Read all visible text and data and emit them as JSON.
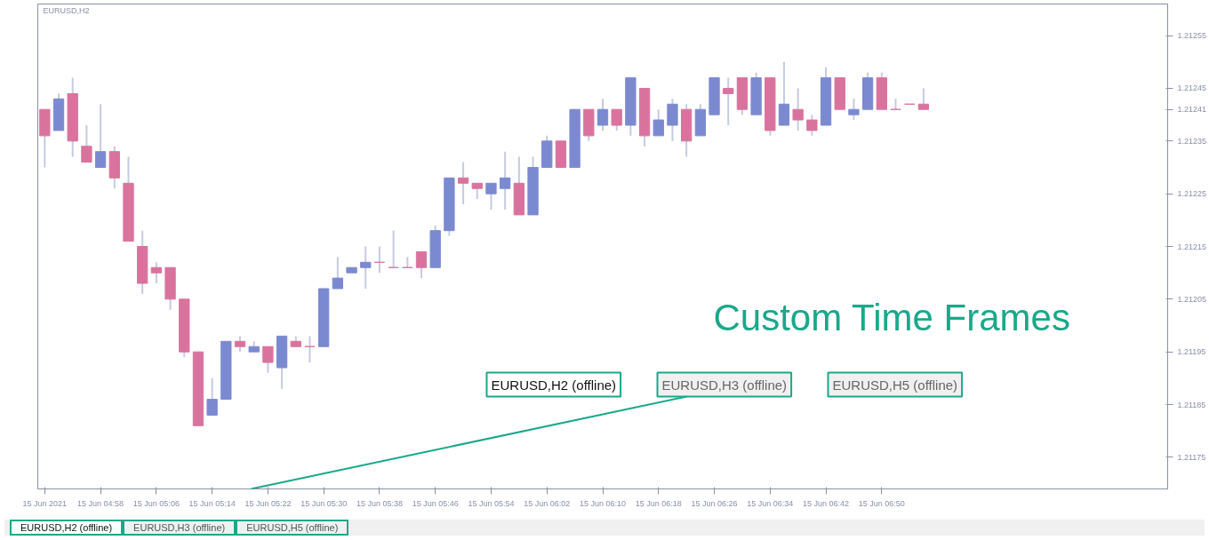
{
  "chart_data": {
    "type": "candlestick",
    "title": "EURUSD,H2",
    "x": [
      "2021-06-15T04:50",
      "2021-06-15T04:52",
      "2021-06-15T04:54",
      "2021-06-15T04:56",
      "2021-06-15T04:58",
      "2021-06-15T05:00",
      "2021-06-15T05:02",
      "2021-06-15T05:04",
      "2021-06-15T05:06",
      "2021-06-15T05:08",
      "2021-06-15T05:10",
      "2021-06-15T05:12",
      "2021-06-15T05:14",
      "2021-06-15T05:16",
      "2021-06-15T05:18",
      "2021-06-15T05:20",
      "2021-06-15T05:22",
      "2021-06-15T05:24",
      "2021-06-15T05:26",
      "2021-06-15T05:28",
      "2021-06-15T05:30",
      "2021-06-15T05:32",
      "2021-06-15T05:34",
      "2021-06-15T05:36",
      "2021-06-15T05:38",
      "2021-06-15T05:40",
      "2021-06-15T05:42",
      "2021-06-15T05:44",
      "2021-06-15T05:46",
      "2021-06-15T05:48",
      "2021-06-15T05:50",
      "2021-06-15T05:52",
      "2021-06-15T05:54",
      "2021-06-15T05:56",
      "2021-06-15T05:58",
      "2021-06-15T06:00",
      "2021-06-15T06:02",
      "2021-06-15T06:04",
      "2021-06-15T06:06",
      "2021-06-15T06:08",
      "2021-06-15T06:10",
      "2021-06-15T06:12",
      "2021-06-15T06:14",
      "2021-06-15T06:16",
      "2021-06-15T06:18",
      "2021-06-15T06:20",
      "2021-06-15T06:22",
      "2021-06-15T06:24",
      "2021-06-15T06:26",
      "2021-06-15T06:28",
      "2021-06-15T06:30",
      "2021-06-15T06:32",
      "2021-06-15T06:34",
      "2021-06-15T06:36",
      "2021-06-15T06:38",
      "2021-06-15T06:40",
      "2021-06-15T06:42",
      "2021-06-15T06:44",
      "2021-06-15T06:46",
      "2021-06-15T06:48",
      "2021-06-15T06:50",
      "2021-06-15T06:52",
      "2021-06-15T06:54",
      "2021-06-15T06:56"
    ],
    "ohlc": [
      [
        1.21241,
        1.21241,
        1.2123,
        1.21236
      ],
      [
        1.21237,
        1.21244,
        1.21237,
        1.21243
      ],
      [
        1.21244,
        1.21247,
        1.21232,
        1.21235
      ],
      [
        1.21234,
        1.21238,
        1.21231,
        1.21231
      ],
      [
        1.2123,
        1.21242,
        1.2123,
        1.21233
      ],
      [
        1.21233,
        1.21234,
        1.21226,
        1.21228
      ],
      [
        1.21227,
        1.21232,
        1.21216,
        1.21216
      ],
      [
        1.21215,
        1.21218,
        1.21206,
        1.21208
      ],
      [
        1.21211,
        1.21212,
        1.21208,
        1.2121
      ],
      [
        1.21211,
        1.21211,
        1.21203,
        1.21205
      ],
      [
        1.21205,
        1.21205,
        1.21194,
        1.21195
      ],
      [
        1.21195,
        1.21195,
        1.21181,
        1.21181
      ],
      [
        1.21183,
        1.2119,
        1.21183,
        1.21186
      ],
      [
        1.21186,
        1.21197,
        1.21186,
        1.21197
      ],
      [
        1.21197,
        1.21198,
        1.21195,
        1.21196
      ],
      [
        1.21195,
        1.21197,
        1.21195,
        1.21196
      ],
      [
        1.21196,
        1.21196,
        1.21191,
        1.21193
      ],
      [
        1.21192,
        1.21198,
        1.21188,
        1.21198
      ],
      [
        1.21197,
        1.21198,
        1.21196,
        1.21196
      ],
      [
        1.21196,
        1.21198,
        1.21193,
        1.21196
      ],
      [
        1.21196,
        1.21207,
        1.21196,
        1.21207
      ],
      [
        1.21207,
        1.21213,
        1.21207,
        1.21209
      ],
      [
        1.2121,
        1.21211,
        1.2121,
        1.21211
      ],
      [
        1.21211,
        1.21215,
        1.21207,
        1.21212
      ],
      [
        1.21212,
        1.21215,
        1.2121,
        1.21212
      ],
      [
        1.21211,
        1.21218,
        1.21211,
        1.21211
      ],
      [
        1.21211,
        1.21213,
        1.21211,
        1.21211
      ],
      [
        1.21214,
        1.21214,
        1.21209,
        1.21211
      ],
      [
        1.21211,
        1.21219,
        1.21211,
        1.21218
      ],
      [
        1.21218,
        1.21228,
        1.21217,
        1.21228
      ],
      [
        1.21228,
        1.21231,
        1.21223,
        1.21227
      ],
      [
        1.21227,
        1.21227,
        1.21224,
        1.21226
      ],
      [
        1.21225,
        1.21227,
        1.21222,
        1.21227
      ],
      [
        1.21226,
        1.21233,
        1.21222,
        1.21228
      ],
      [
        1.21227,
        1.21232,
        1.21221,
        1.21221
      ],
      [
        1.21221,
        1.21232,
        1.21221,
        1.2123
      ],
      [
        1.2123,
        1.21236,
        1.2123,
        1.21235
      ],
      [
        1.21235,
        1.21235,
        1.2123,
        1.2123
      ],
      [
        1.2123,
        1.21241,
        1.2123,
        1.21241
      ],
      [
        1.21241,
        1.21241,
        1.21235,
        1.21236
      ],
      [
        1.21238,
        1.21243,
        1.21237,
        1.21241
      ],
      [
        1.21241,
        1.21241,
        1.21237,
        1.21238
      ],
      [
        1.21238,
        1.21247,
        1.21236,
        1.21247
      ],
      [
        1.21245,
        1.21245,
        1.21234,
        1.21236
      ],
      [
        1.21236,
        1.21241,
        1.21236,
        1.21239
      ],
      [
        1.21238,
        1.21243,
        1.21235,
        1.21242
      ],
      [
        1.21241,
        1.21242,
        1.21232,
        1.21235
      ],
      [
        1.21236,
        1.21242,
        1.21236,
        1.21241
      ],
      [
        1.2124,
        1.21247,
        1.2124,
        1.21247
      ],
      [
        1.21245,
        1.21247,
        1.21238,
        1.21244
      ],
      [
        1.21247,
        1.21247,
        1.2124,
        1.21241
      ],
      [
        1.2124,
        1.21248,
        1.2124,
        1.21247
      ],
      [
        1.21247,
        1.21247,
        1.21236,
        1.21237
      ],
      [
        1.21238,
        1.2125,
        1.21238,
        1.21242
      ],
      [
        1.21241,
        1.21245,
        1.21237,
        1.21239
      ],
      [
        1.21239,
        1.2124,
        1.21236,
        1.21237
      ],
      [
        1.21238,
        1.21249,
        1.21238,
        1.21247
      ],
      [
        1.21247,
        1.21247,
        1.21241,
        1.21241
      ],
      [
        1.2124,
        1.21243,
        1.21239,
        1.21241
      ],
      [
        1.21241,
        1.21248,
        1.21241,
        1.21247
      ],
      [
        1.21247,
        1.21248,
        1.21241,
        1.21241
      ],
      [
        1.21241,
        1.21243,
        1.21241,
        1.21241
      ],
      [
        1.21242,
        1.21242,
        1.21242,
        1.21242
      ],
      [
        1.21242,
        1.21245,
        1.21241,
        1.21241
      ]
    ],
    "colors": [
      "#d9739e",
      "#7b8ad0",
      "#d9739e",
      "#d9739e",
      "#7b8ad0",
      "#d9739e",
      "#d9739e",
      "#d9739e",
      "#d9739e",
      "#d9739e",
      "#d9739e",
      "#d9739e",
      "#7b8ad0",
      "#7b8ad0",
      "#d9739e",
      "#7b8ad0",
      "#d9739e",
      "#7b8ad0",
      "#d9739e",
      "#d9739e",
      "#7b8ad0",
      "#7b8ad0",
      "#7b8ad0",
      "#7b8ad0",
      "#d9739e",
      "#d9739e",
      "#d9739e",
      "#d9739e",
      "#7b8ad0",
      "#7b8ad0",
      "#d9739e",
      "#d9739e",
      "#7b8ad0",
      "#7b8ad0",
      "#d9739e",
      "#7b8ad0",
      "#7b8ad0",
      "#d9739e",
      "#7b8ad0",
      "#d9739e",
      "#7b8ad0",
      "#d9739e",
      "#7b8ad0",
      "#d9739e",
      "#7b8ad0",
      "#7b8ad0",
      "#d9739e",
      "#7b8ad0",
      "#7b8ad0",
      "#d9739e",
      "#d9739e",
      "#7b8ad0",
      "#d9739e",
      "#7b8ad0",
      "#d9739e",
      "#d9739e",
      "#7b8ad0",
      "#d9739e",
      "#7b8ad0",
      "#7b8ad0",
      "#d9739e",
      "#d9739e",
      "#d9739e",
      "#d9739e"
    ],
    "xlim": [
      "2021-06-15T04:49",
      "2021-06-15T07:31"
    ],
    "xticks": [
      {
        "value": "2021-06-15T04:50",
        "label": "15 Jun 2021"
      },
      {
        "value": "2021-06-15T04:58",
        "label": "15 Jun 04:58"
      },
      {
        "value": "2021-06-15T05:06",
        "label": "15 Jun 05:06"
      },
      {
        "value": "2021-06-15T05:14",
        "label": "15 Jun 05:14"
      },
      {
        "value": "2021-06-15T05:22",
        "label": "15 Jun 05:22"
      },
      {
        "value": "2021-06-15T05:30",
        "label": "15 Jun 05:30"
      },
      {
        "value": "2021-06-15T05:38",
        "label": "15 Jun 05:38"
      },
      {
        "value": "2021-06-15T05:46",
        "label": "15 Jun 05:46"
      },
      {
        "value": "2021-06-15T05:54",
        "label": "15 Jun 05:54"
      },
      {
        "value": "2021-06-15T06:02",
        "label": "15 Jun 06:02"
      },
      {
        "value": "2021-06-15T06:10",
        "label": "15 Jun 06:10"
      },
      {
        "value": "2021-06-15T06:18",
        "label": "15 Jun 06:18"
      },
      {
        "value": "2021-06-15T06:26",
        "label": "15 Jun 06:26"
      },
      {
        "value": "2021-06-15T06:34",
        "label": "15 Jun 06:34"
      },
      {
        "value": "2021-06-15T06:42",
        "label": "15 Jun 06:42"
      },
      {
        "value": "2021-06-15T06:50",
        "label": "15 Jun 06:50"
      }
    ],
    "ylim": [
      1.21169,
      1.21261
    ],
    "yticks": [
      1.21175,
      1.21185,
      1.21195,
      1.21205,
      1.21215,
      1.21225,
      1.21235,
      {
        "value": 1.21241,
        "label": "1.21241"
      },
      1.21245,
      1.21255
    ],
    "annotations": [
      "Custom Time Frames",
      "EURUSD,H2 (offline)",
      "EURUSD,H3 (offline)",
      "EURUSD,H5 (offline)",
      "EURUSD,H2 (offline)",
      "EURUSD,H3 (offline)",
      "EURUSD,H5 (offline)"
    ],
    "grid": false
  }
}
